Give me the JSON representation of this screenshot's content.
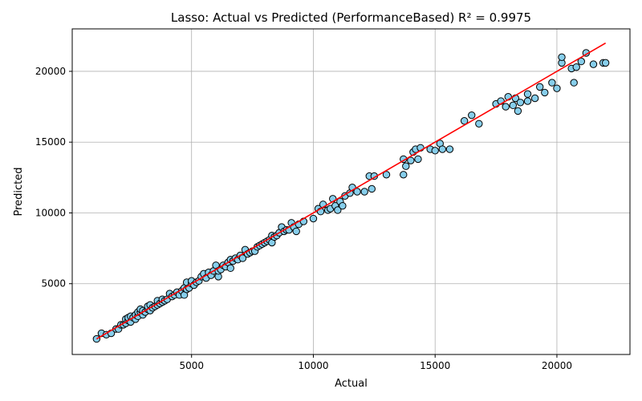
{
  "chart_data": {
    "type": "scatter",
    "title": "Lasso: Actual vs Predicted (PerformanceBased) R² = 0.9975",
    "xlabel": "Actual",
    "ylabel": "Predicted",
    "xlim": [
      100,
      23000
    ],
    "ylim": [
      0,
      23000
    ],
    "xticks": [
      5000,
      10000,
      15000,
      20000
    ],
    "yticks": [
      5000,
      10000,
      15000,
      20000
    ],
    "grid": true,
    "colors": {
      "points": "#87ceeb",
      "point_edge": "#000000",
      "line": "#ff0000",
      "grid": "#b0b0b0"
    },
    "fit_line": {
      "x": [
        1100,
        22000
      ],
      "y": [
        1100,
        22000
      ]
    },
    "series": [
      {
        "points": [
          [
            1100,
            1100
          ],
          [
            1300,
            1500
          ],
          [
            1500,
            1400
          ],
          [
            1700,
            1500
          ],
          [
            1900,
            1800
          ],
          [
            2000,
            1800
          ],
          [
            2100,
            2100
          ],
          [
            2200,
            2100
          ],
          [
            2300,
            2200
          ],
          [
            2300,
            2500
          ],
          [
            2400,
            2400
          ],
          [
            2400,
            2600
          ],
          [
            2500,
            2300
          ],
          [
            2500,
            2700
          ],
          [
            2600,
            2600
          ],
          [
            2700,
            2500
          ],
          [
            2700,
            2800
          ],
          [
            2800,
            2700
          ],
          [
            2800,
            3000
          ],
          [
            2900,
            3000
          ],
          [
            2900,
            3200
          ],
          [
            3000,
            2800
          ],
          [
            3000,
            3100
          ],
          [
            3100,
            3000
          ],
          [
            3200,
            3200
          ],
          [
            3200,
            3400
          ],
          [
            3300,
            3100
          ],
          [
            3300,
            3500
          ],
          [
            3400,
            3300
          ],
          [
            3500,
            3400
          ],
          [
            3600,
            3500
          ],
          [
            3600,
            3800
          ],
          [
            3700,
            3600
          ],
          [
            3800,
            3700
          ],
          [
            3800,
            3900
          ],
          [
            3900,
            3800
          ],
          [
            4000,
            3900
          ],
          [
            4100,
            4300
          ],
          [
            4200,
            4100
          ],
          [
            4300,
            4200
          ],
          [
            4400,
            4400
          ],
          [
            4500,
            4200
          ],
          [
            4600,
            4500
          ],
          [
            4700,
            4200
          ],
          [
            4700,
            4700
          ],
          [
            4800,
            4600
          ],
          [
            4800,
            5100
          ],
          [
            4900,
            4700
          ],
          [
            5000,
            5000
          ],
          [
            5000,
            5200
          ],
          [
            5100,
            4900
          ],
          [
            5200,
            5100
          ],
          [
            5300,
            5200
          ],
          [
            5400,
            5500
          ],
          [
            5500,
            5700
          ],
          [
            5600,
            5400
          ],
          [
            5700,
            5800
          ],
          [
            5800,
            5600
          ],
          [
            5900,
            5900
          ],
          [
            6000,
            6300
          ],
          [
            6100,
            5500
          ],
          [
            6100,
            5900
          ],
          [
            6200,
            6000
          ],
          [
            6300,
            6300
          ],
          [
            6400,
            6200
          ],
          [
            6500,
            6500
          ],
          [
            6600,
            6100
          ],
          [
            6600,
            6700
          ],
          [
            6700,
            6600
          ],
          [
            6800,
            6800
          ],
          [
            6900,
            6700
          ],
          [
            7000,
            7000
          ],
          [
            7100,
            6800
          ],
          [
            7200,
            7400
          ],
          [
            7300,
            7100
          ],
          [
            7400,
            7200
          ],
          [
            7500,
            7300
          ],
          [
            7600,
            7300
          ],
          [
            7700,
            7600
          ],
          [
            7800,
            7700
          ],
          [
            7900,
            7800
          ],
          [
            8000,
            7900
          ],
          [
            8100,
            8000
          ],
          [
            8200,
            8100
          ],
          [
            8300,
            7900
          ],
          [
            8300,
            8400
          ],
          [
            8400,
            8300
          ],
          [
            8500,
            8400
          ],
          [
            8600,
            8600
          ],
          [
            8700,
            9000
          ],
          [
            8800,
            8700
          ],
          [
            8900,
            8800
          ],
          [
            9000,
            8800
          ],
          [
            9100,
            9300
          ],
          [
            9200,
            9000
          ],
          [
            9300,
            8700
          ],
          [
            9400,
            9200
          ],
          [
            9600,
            9400
          ],
          [
            10000,
            9600
          ],
          [
            10200,
            10300
          ],
          [
            10300,
            10100
          ],
          [
            10400,
            10600
          ],
          [
            10600,
            10200
          ],
          [
            10700,
            10300
          ],
          [
            10800,
            11000
          ],
          [
            10900,
            10500
          ],
          [
            11000,
            10200
          ],
          [
            11100,
            10800
          ],
          [
            11200,
            10500
          ],
          [
            11300,
            11200
          ],
          [
            11500,
            11400
          ],
          [
            11600,
            11800
          ],
          [
            11800,
            11500
          ],
          [
            12100,
            11500
          ],
          [
            12300,
            12600
          ],
          [
            12400,
            11700
          ],
          [
            12500,
            12600
          ],
          [
            13000,
            12700
          ],
          [
            13700,
            12700
          ],
          [
            13700,
            13800
          ],
          [
            13800,
            13300
          ],
          [
            14000,
            13700
          ],
          [
            14100,
            14300
          ],
          [
            14200,
            14500
          ],
          [
            14300,
            13800
          ],
          [
            14400,
            14600
          ],
          [
            14800,
            14500
          ],
          [
            15000,
            14400
          ],
          [
            15200,
            14900
          ],
          [
            15300,
            14500
          ],
          [
            15600,
            14500
          ],
          [
            16200,
            16500
          ],
          [
            16500,
            16900
          ],
          [
            16800,
            16300
          ],
          [
            17500,
            17700
          ],
          [
            17700,
            17900
          ],
          [
            17900,
            17500
          ],
          [
            18000,
            18200
          ],
          [
            18200,
            17600
          ],
          [
            18300,
            18100
          ],
          [
            18400,
            17200
          ],
          [
            18500,
            17800
          ],
          [
            18800,
            18400
          ],
          [
            18800,
            17900
          ],
          [
            19100,
            18100
          ],
          [
            19300,
            18900
          ],
          [
            19500,
            18500
          ],
          [
            19800,
            19200
          ],
          [
            20000,
            18800
          ],
          [
            20200,
            20600
          ],
          [
            20200,
            21000
          ],
          [
            20600,
            20200
          ],
          [
            20700,
            19200
          ],
          [
            20800,
            20300
          ],
          [
            21000,
            20700
          ],
          [
            21200,
            21300
          ],
          [
            21500,
            20500
          ],
          [
            21900,
            20600
          ],
          [
            22000,
            20600
          ]
        ]
      }
    ]
  }
}
